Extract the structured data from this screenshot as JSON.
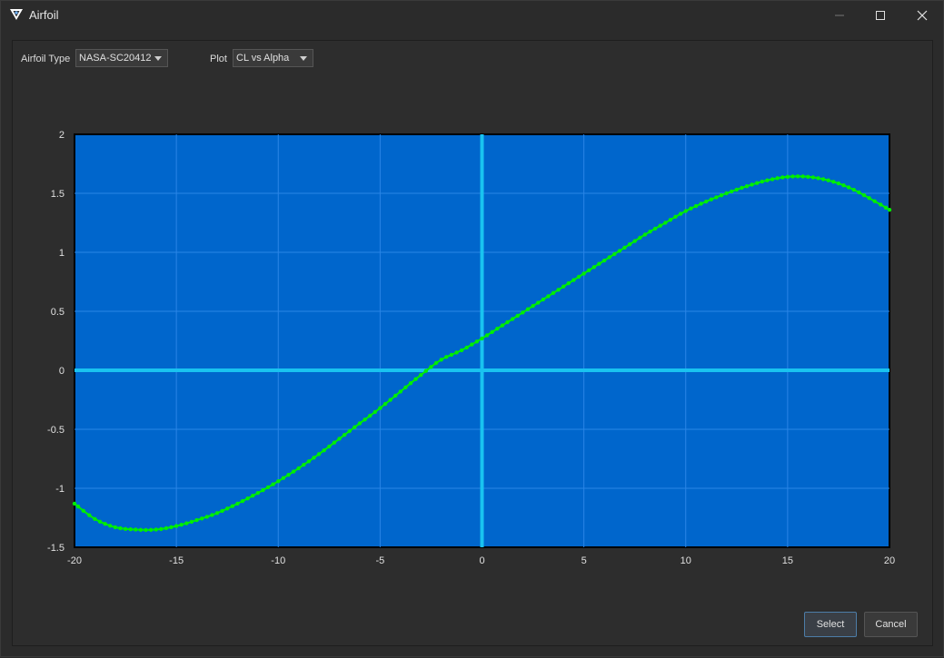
{
  "window": {
    "title": "Airfoil"
  },
  "controls": {
    "airfoil_type_label": "Airfoil Type",
    "airfoil_type_value": "NASA-SC20412",
    "plot_label": "Plot",
    "plot_value": "CL vs Alpha"
  },
  "buttons": {
    "select": "Select",
    "cancel": "Cancel"
  },
  "colors": {
    "plot_background": "#0066cc",
    "grid": "#2a85e6",
    "axis_lines": "#19c3f0",
    "series": "#00ee00"
  },
  "chart_data": {
    "type": "line",
    "title": "",
    "xlabel": "",
    "ylabel": "",
    "xlim": [
      -20,
      20
    ],
    "ylim": [
      -1.5,
      2
    ],
    "x_ticks": [
      "-20",
      "-15",
      "-10",
      "-5",
      "0",
      "5",
      "10",
      "15",
      "20"
    ],
    "y_ticks": [
      "-1.5",
      "-1",
      "-0.5",
      "0",
      "0.5",
      "1",
      "1.5",
      "2"
    ],
    "grid": true,
    "legend": false,
    "series": [
      {
        "markers": true,
        "points": [
          [
            -20,
            -1.13
          ],
          [
            -19,
            -1.26
          ],
          [
            -18,
            -1.33
          ],
          [
            -17,
            -1.35
          ],
          [
            -16,
            -1.35
          ],
          [
            -15,
            -1.32
          ],
          [
            -14,
            -1.27
          ],
          [
            -13,
            -1.21
          ],
          [
            -12,
            -1.13
          ],
          [
            -11,
            -1.04
          ],
          [
            -10,
            -0.94
          ],
          [
            -9,
            -0.83
          ],
          [
            -8,
            -0.71
          ],
          [
            -7,
            -0.58
          ],
          [
            -6,
            -0.45
          ],
          [
            -5,
            -0.32
          ],
          [
            -4,
            -0.18
          ],
          [
            -3,
            -0.04
          ],
          [
            -2,
            0.09
          ],
          [
            -1,
            0.17
          ],
          [
            0,
            0.27
          ],
          [
            1,
            0.38
          ],
          [
            2,
            0.49
          ],
          [
            3,
            0.6
          ],
          [
            4,
            0.71
          ],
          [
            5,
            0.82
          ],
          [
            6,
            0.93
          ],
          [
            7,
            1.04
          ],
          [
            8,
            1.15
          ],
          [
            9,
            1.25
          ],
          [
            10,
            1.35
          ],
          [
            11,
            1.43
          ],
          [
            12,
            1.5
          ],
          [
            13,
            1.56
          ],
          [
            14,
            1.61
          ],
          [
            15,
            1.64
          ],
          [
            16,
            1.64
          ],
          [
            17,
            1.61
          ],
          [
            18,
            1.55
          ],
          [
            19,
            1.46
          ],
          [
            20,
            1.36
          ]
        ]
      }
    ]
  }
}
